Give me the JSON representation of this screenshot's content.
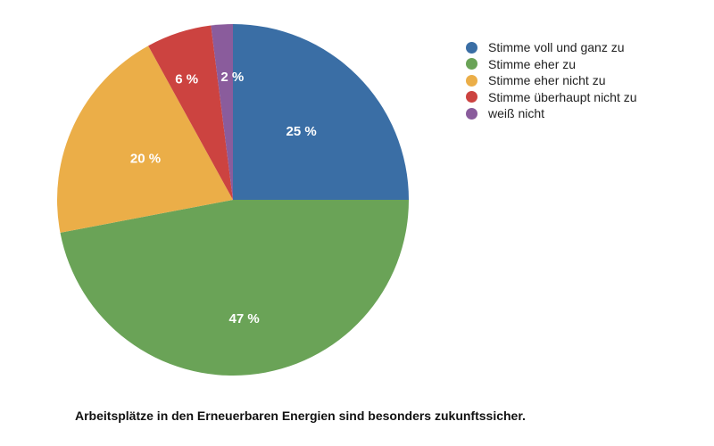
{
  "chart_data": {
    "type": "pie",
    "caption": "Arbeitsplätze in den Erneuerbaren Energien sind besonders zukunftssicher.",
    "slices": [
      {
        "label": "Stimme voll und ganz zu",
        "value": 25,
        "value_label": "25 %",
        "color": "#3a6ea5"
      },
      {
        "label": "Stimme eher zu",
        "value": 47,
        "value_label": "47 %",
        "color": "#6aa357"
      },
      {
        "label": "Stimme eher nicht zu",
        "value": 20,
        "value_label": "20 %",
        "color": "#ebae48"
      },
      {
        "label": "Stimme überhaupt nicht zu",
        "value": 6,
        "value_label": "6 %",
        "color": "#cc4340"
      },
      {
        "label": "weiß nicht",
        "value": 2,
        "value_label": "2 %",
        "color": "#8a5c9c"
      }
    ],
    "legend_position": "top-right"
  }
}
